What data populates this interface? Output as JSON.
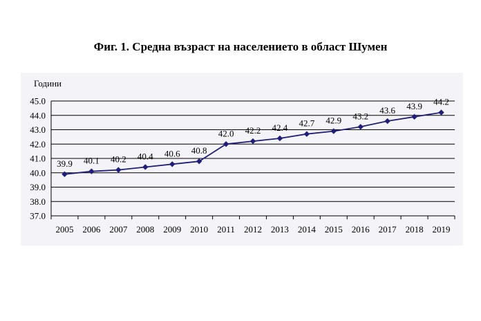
{
  "chart_data": {
    "type": "line",
    "title": "Фиг. 1. Средна възраст на населението в област Шумен",
    "ylabel": "Години",
    "xlabel": "",
    "x": [
      "2005",
      "2006",
      "2007",
      "2008",
      "2009",
      "2010",
      "2011",
      "2012",
      "2013",
      "2014",
      "2015",
      "2016",
      "2017",
      "2018",
      "2019"
    ],
    "series": [
      {
        "values": [
          39.9,
          40.1,
          40.2,
          40.4,
          40.6,
          40.8,
          42.0,
          42.2,
          42.4,
          42.7,
          42.9,
          43.2,
          43.6,
          43.9,
          44.2
        ]
      }
    ],
    "data_labels": [
      "39.9",
      "40.1",
      "40.2",
      "40.4",
      "40.6",
      "40.8",
      "42.0",
      "42.2",
      "42.4",
      "42.7",
      "42.9",
      "43.2",
      "43.6",
      "43.9",
      "44.2"
    ],
    "y_ticks": [
      "37.0",
      "38.0",
      "39.0",
      "40.0",
      "41.0",
      "42.0",
      "43.0",
      "44.0",
      "45.0"
    ],
    "ylim": [
      37,
      45
    ],
    "grid": true,
    "line_color": "#1f1f7a",
    "marker": "diamond"
  }
}
